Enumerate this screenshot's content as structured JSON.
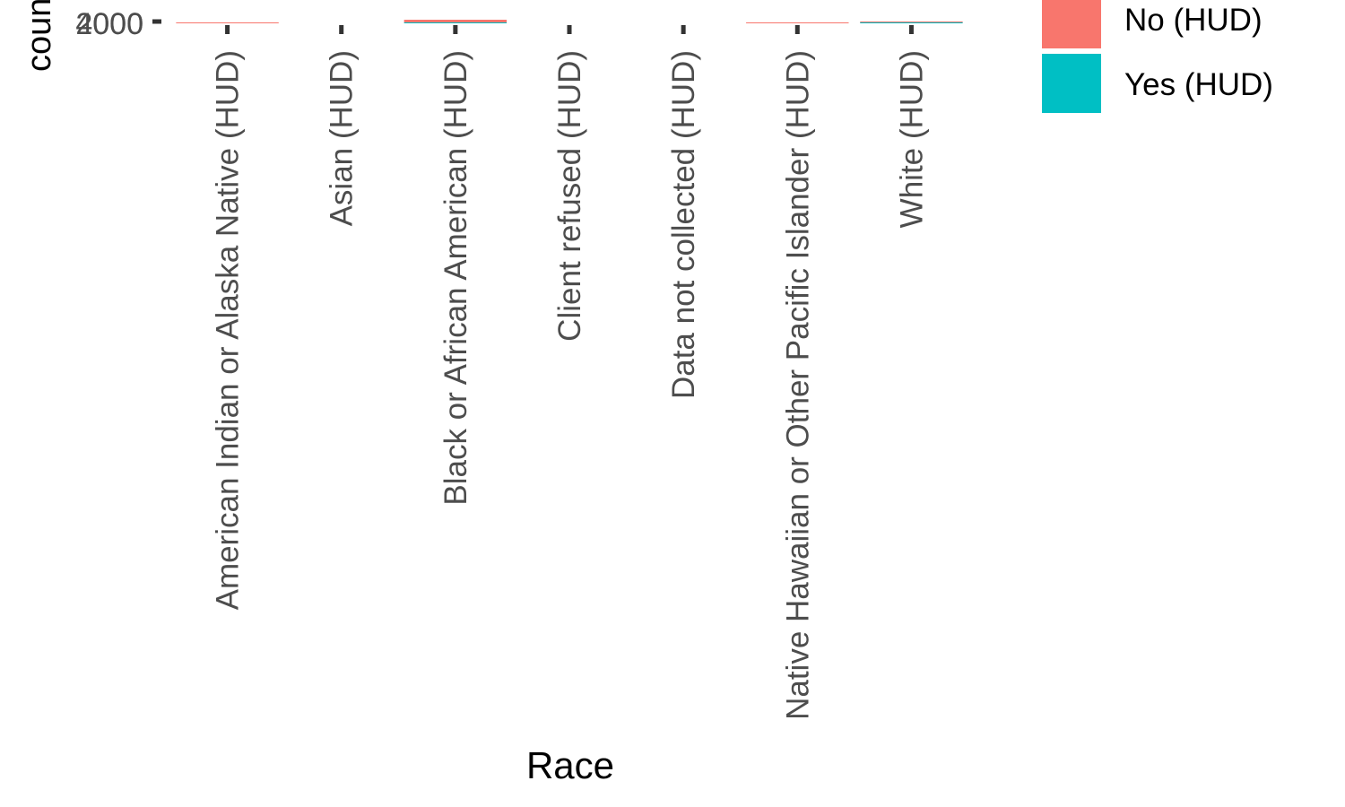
{
  "chart_data": {
    "type": "bar",
    "stacked": true,
    "xlabel": "Race",
    "ylabel": "count",
    "ytick_labels": [
      "2000",
      "4000"
    ],
    "categories": [
      "American Indian or Alaska Native (HUD)",
      "Asian (HUD)",
      "Black or African American (HUD)",
      "Client refused (HUD)",
      "Data not collected (HUD)",
      "Native Hawaiian or Other Pacific Islander (HUD)",
      "White (HUD)"
    ],
    "series": [
      {
        "name": "No (HUD)",
        "color": "#F8766D",
        "values": [
          1,
          0,
          3,
          0,
          0,
          1,
          1
        ]
      },
      {
        "name": "Yes (HUD)",
        "color": "#00BFC4",
        "values": [
          0,
          0,
          1,
          0,
          0,
          0,
          1
        ]
      }
    ],
    "legend": {
      "position": "right"
    },
    "grid": false
  }
}
